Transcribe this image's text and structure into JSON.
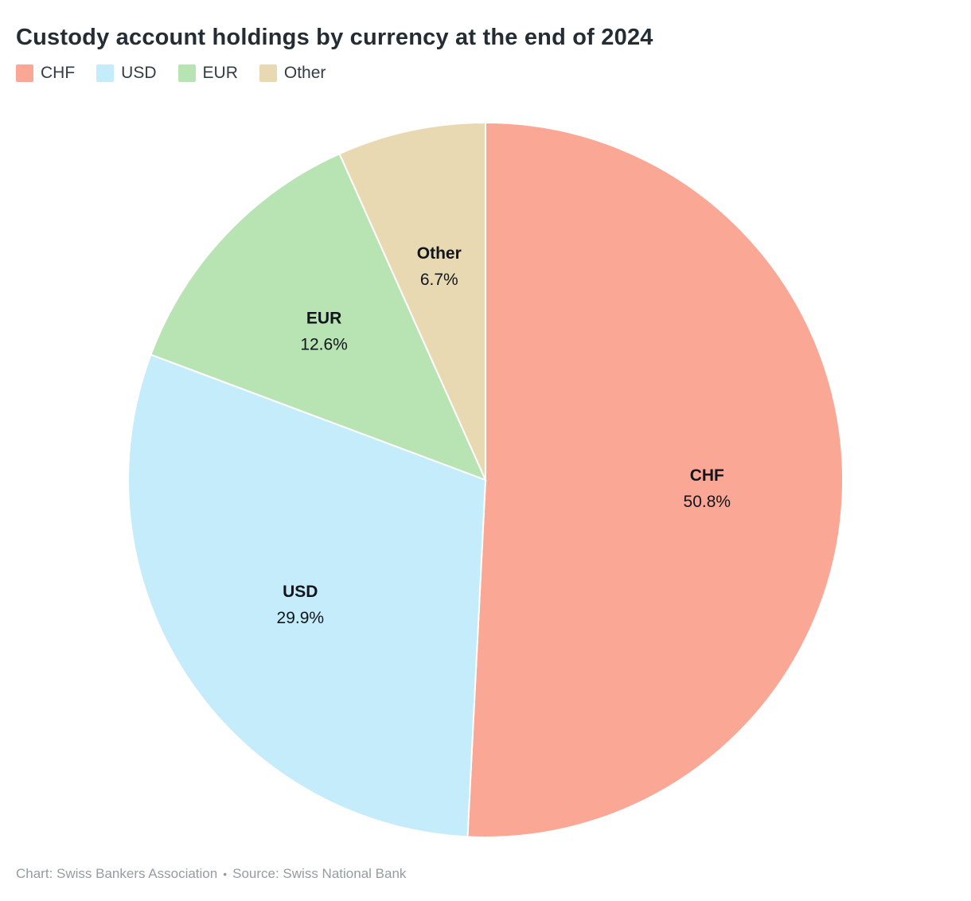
{
  "title": "Custody account holdings by currency at the end of 2024",
  "legend": {
    "items": [
      {
        "label": "CHF",
        "color": "#fba795"
      },
      {
        "label": "USD",
        "color": "#c5ecfa"
      },
      {
        "label": "EUR",
        "color": "#b8e3b2"
      },
      {
        "label": "Other",
        "color": "#e9d9b3"
      }
    ]
  },
  "footer": {
    "chart_credit": "Chart: Swiss Bankers Association",
    "separator": "•",
    "source": "Source: Swiss National Bank"
  },
  "chart_data": {
    "type": "pie",
    "title": "Custody account holdings by currency at the end of 2024",
    "categories": [
      "CHF",
      "USD",
      "EUR",
      "Other"
    ],
    "values": [
      50.8,
      29.9,
      12.6,
      6.7
    ],
    "unit": "%",
    "colors": [
      "#fba795",
      "#c5ecfa",
      "#b8e3b2",
      "#e9d9b3"
    ],
    "start_angle_deg": 0,
    "direction": "clockwise",
    "labels_inside": true,
    "legend_position": "top",
    "slice_border_color": "#ffffff",
    "credit": "Swiss Bankers Association",
    "source": "Swiss National Bank"
  }
}
